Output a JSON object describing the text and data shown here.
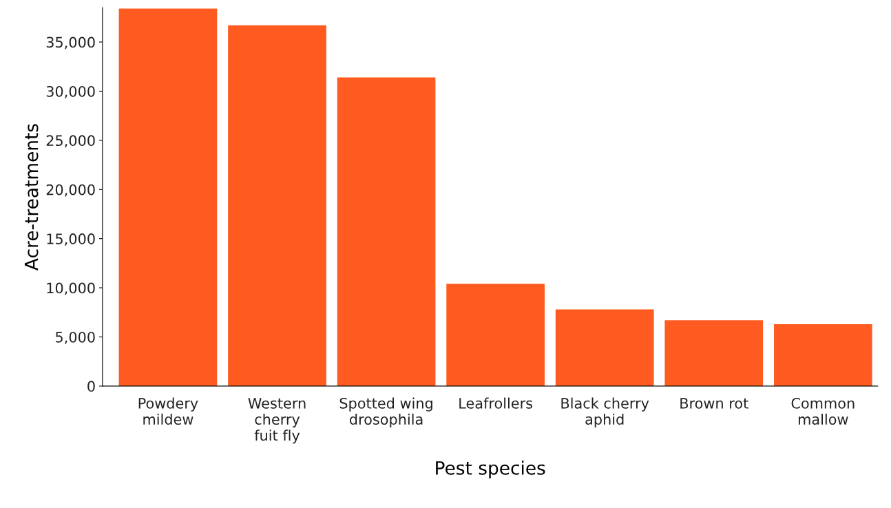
{
  "chart_data": {
    "type": "bar",
    "xlabel": "Pest species",
    "ylabel": "Acre-treatments",
    "categories": [
      "Powdery\nmildew",
      "Western\ncherry\nfuit fly",
      "Spotted wing\ndrosophila",
      "Leafrollers",
      "Black cherry\naphid",
      "Brown rot",
      "Common\nmallow"
    ],
    "values": [
      38400,
      36700,
      31400,
      10400,
      7800,
      6700,
      6300
    ],
    "color": "#ff5a1f",
    "ylim": [
      0,
      38500
    ],
    "yticks": [
      {
        "value": 0,
        "label": "0"
      },
      {
        "value": 5000,
        "label": "5,000"
      },
      {
        "value": 10000,
        "label": "10,000"
      },
      {
        "value": 15000,
        "label": "15,000"
      },
      {
        "value": 20000,
        "label": "20,000"
      },
      {
        "value": 25000,
        "label": "25,000"
      },
      {
        "value": 30000,
        "label": "30,000"
      },
      {
        "value": 35000,
        "label": "35,000"
      }
    ],
    "grid": false
  }
}
